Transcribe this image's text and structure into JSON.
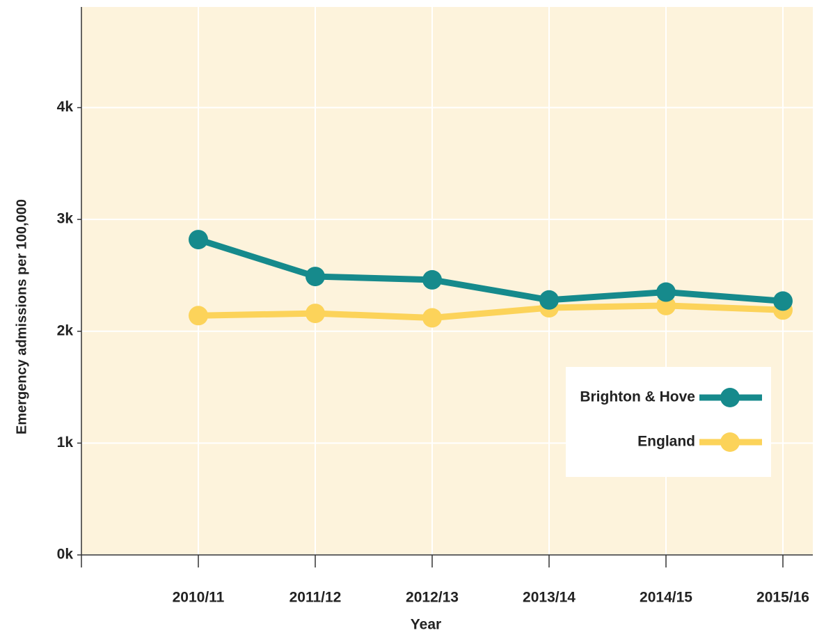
{
  "chart_data": {
    "type": "line",
    "x_label": "Year",
    "y_label": "Emergency admissions per 100,000",
    "categories": [
      "2010/11",
      "2011/12",
      "2012/13",
      "2013/14",
      "2014/15",
      "2015/16"
    ],
    "series": [
      {
        "name": "Brighton & Hove",
        "color": "#168a8c",
        "values": [
          2820,
          2490,
          2460,
          2280,
          2350,
          2270
        ]
      },
      {
        "name": "England",
        "color": "#fcd35a",
        "values": [
          2140,
          2160,
          2120,
          2210,
          2230,
          2190
        ]
      }
    ],
    "ylim": [
      0,
      4900
    ],
    "yticks": [
      {
        "value": 0,
        "label": "0k"
      },
      {
        "value": 1000,
        "label": "1k"
      },
      {
        "value": 2000,
        "label": "2k"
      },
      {
        "value": 3000,
        "label": "3k"
      },
      {
        "value": 4000,
        "label": "4k"
      }
    ],
    "grid": true,
    "legend": "lower right"
  }
}
